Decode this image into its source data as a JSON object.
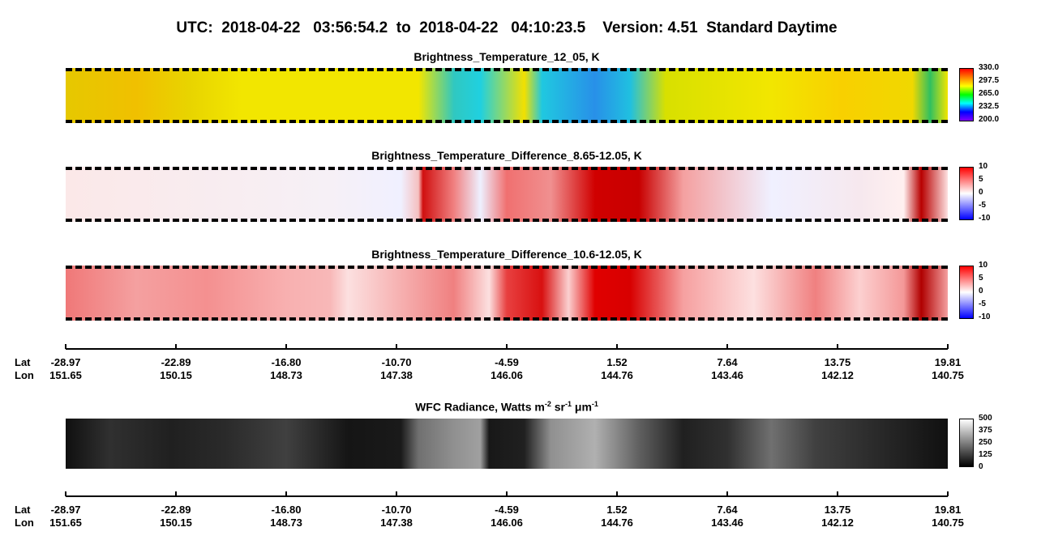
{
  "title": "UTC:  2018-04-22   03:56:54.2  to  2018-04-22   04:10:23.5    Version: 4.51  Standard Daytime",
  "panels": [
    {
      "title": "Brightness_Temperature_12_05, K",
      "colorbar": [
        "330.0",
        "297.5",
        "265.0",
        "232.5",
        "200.0"
      ]
    },
    {
      "title": "Brightness_Temperature_Difference_8.65-12.05, K",
      "colorbar": [
        "10",
        "5",
        "0",
        "-5",
        "-10"
      ]
    },
    {
      "title": "Brightness_Temperature_Difference_10.6-12.05, K",
      "colorbar": [
        "10",
        "5",
        "0",
        "-5",
        "-10"
      ]
    }
  ],
  "wfc": {
    "title": [
      "WFC Radiance, Watts m",
      "-2",
      " sr",
      "-1",
      " μm",
      "-1"
    ],
    "colorbar": [
      "500",
      "375",
      "250",
      "125",
      "0"
    ]
  },
  "axis": {
    "lat_label": "Lat",
    "lon_label": "Lon",
    "lat": [
      "-28.97",
      "-22.89",
      "-16.80",
      "-10.70",
      "-4.59",
      "1.52",
      "7.64",
      "13.75",
      "19.81"
    ],
    "lon": [
      "151.65",
      "150.15",
      "148.73",
      "147.38",
      "146.06",
      "144.76",
      "143.46",
      "142.12",
      "140.75"
    ]
  }
}
